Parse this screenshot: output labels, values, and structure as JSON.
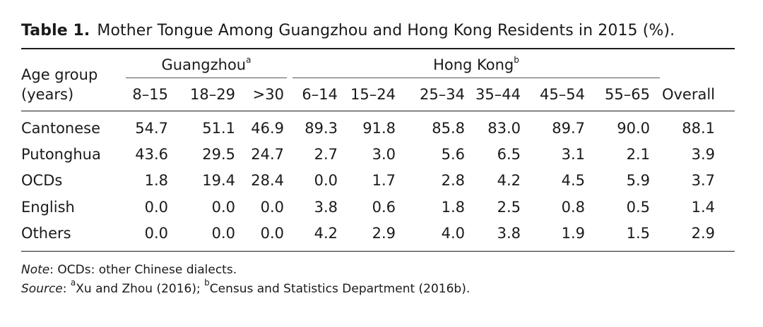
{
  "table": {
    "label": "Table 1.",
    "caption": "Mother Tongue Among Guangzhou and Hong Kong Residents in 2015 (%).",
    "age_group_line1": "Age group",
    "age_group_line2": "(years)",
    "groups": [
      {
        "name": "Guangzhou",
        "sup": "a"
      },
      {
        "name": "Hong Kong",
        "sup": "b"
      }
    ],
    "columns": [
      "8–15",
      "18–29",
      ">30",
      "6–14",
      "15–24",
      "25–34",
      "35–44",
      "45–54",
      "55–65",
      "Overall"
    ],
    "rows": [
      {
        "label": "Cantonese",
        "values": [
          "54.7",
          "51.1",
          "46.9",
          "89.3",
          "91.8",
          "85.8",
          "83.0",
          "89.7",
          "90.0",
          "88.1"
        ]
      },
      {
        "label": "Putonghua",
        "values": [
          "43.6",
          "29.5",
          "24.7",
          "2.7",
          "3.0",
          "5.6",
          "6.5",
          "3.1",
          "2.1",
          "3.9"
        ]
      },
      {
        "label": "OCDs",
        "values": [
          "1.8",
          "19.4",
          "28.4",
          "0.0",
          "1.7",
          "2.8",
          "4.2",
          "4.5",
          "5.9",
          "3.7"
        ]
      },
      {
        "label": "English",
        "values": [
          "0.0",
          "0.0",
          "0.0",
          "3.8",
          "0.6",
          "1.8",
          "2.5",
          "0.8",
          "0.5",
          "1.4"
        ]
      },
      {
        "label": "Others",
        "values": [
          "0.0",
          "0.0",
          "0.0",
          "4.2",
          "2.9",
          "4.0",
          "3.8",
          "1.9",
          "1.5",
          "2.9"
        ]
      }
    ]
  },
  "notes": {
    "note_label": "Note",
    "note_text": ": OCDs: other Chinese dialects.",
    "source_label": "Source",
    "source_sep": ": ",
    "source_a_sup": "a",
    "source_a_text": "Xu and Zhou (2016); ",
    "source_b_sup": "b",
    "source_b_text": "Census and Statistics Department (2016b)."
  }
}
